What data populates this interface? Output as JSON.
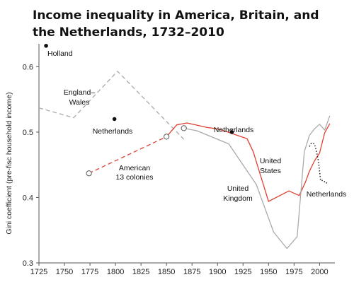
{
  "chart_data": {
    "type": "line",
    "title": "Income inequality in America, Britain, and the Netherlands, 1732–2010",
    "ylabel": "Gini coefficient (pre-fisc household income)",
    "xlabel": "",
    "xlim": [
      1725,
      2015
    ],
    "ylim": [
      0.3,
      0.635
    ],
    "xticks": [
      1725,
      1750,
      1775,
      1800,
      1825,
      1850,
      1875,
      1900,
      1925,
      1950,
      1975,
      2000
    ],
    "xtick_labels": [
      "1725",
      "1750",
      "1775",
      "1800",
      "1825",
      "1850",
      "1875",
      "1900",
      "1925",
      "1950",
      "1975",
      "2000"
    ],
    "yticks": [
      0.3,
      0.4,
      0.5,
      0.6
    ],
    "ytick_labels": [
      "0.3",
      "0.4",
      "0.5",
      "0.6"
    ],
    "grid": false,
    "legend": "none (series labelled directly on the chart)",
    "series": [
      {
        "name": "England–Wales",
        "color": "#aaaaaa",
        "style": "dashed",
        "x": [
          1725,
          1759,
          1802,
          1867
        ],
        "y": [
          0.537,
          0.522,
          0.593,
          0.489
        ]
      },
      {
        "name": "American 13 colonies",
        "color": "#e04030",
        "style": "dashed",
        "x": [
          1774,
          1850
        ],
        "y": [
          0.437,
          0.493
        ]
      },
      {
        "name": "United States",
        "color": "#e04030",
        "style": "solid",
        "x": [
          1850,
          1860,
          1870,
          1890,
          1900,
          1910,
          1929,
          1935,
          1950,
          1960,
          1970,
          1980,
          1986,
          1990,
          1995,
          2000,
          2005,
          2010
        ],
        "y": [
          0.493,
          0.511,
          0.514,
          0.507,
          0.505,
          0.5,
          0.49,
          0.47,
          0.394,
          0.402,
          0.41,
          0.403,
          0.423,
          0.44,
          0.456,
          0.468,
          0.499,
          0.513
        ]
      },
      {
        "name": "United Kingdom",
        "color": "#aaaaaa",
        "style": "solid",
        "x": [
          1867,
          1880,
          1911,
          1938,
          1955,
          1968,
          1978,
          1985,
          1990,
          1995,
          2000,
          2005,
          2010
        ],
        "y": [
          0.506,
          0.502,
          0.482,
          0.42,
          0.347,
          0.322,
          0.34,
          0.47,
          0.495,
          0.505,
          0.512,
          0.503,
          0.525
        ]
      },
      {
        "name": "Netherlands",
        "color": "#222222",
        "style": "dotted",
        "x": [
          1990,
          1992,
          1995,
          1997,
          1999,
          2001,
          2004,
          2006,
          2009
        ],
        "y": [
          0.478,
          0.483,
          0.482,
          0.47,
          0.455,
          0.426,
          0.426,
          0.422,
          0.423
        ]
      }
    ],
    "points": [
      {
        "name": "Holland",
        "x": 1732,
        "y": 0.632,
        "style": "filled"
      },
      {
        "name": "Netherlands",
        "x": 1799,
        "y": 0.52,
        "style": "filled"
      },
      {
        "name": "Netherlands",
        "x": 1914,
        "y": 0.5,
        "style": "filled"
      },
      {
        "name": "American 13 colonies",
        "x": 1774,
        "y": 0.437,
        "style": "open"
      },
      {
        "name": "United States",
        "x": 1850,
        "y": 0.493,
        "style": "open"
      },
      {
        "name": "United Kingdom",
        "x": 1867,
        "y": 0.506,
        "style": "open"
      }
    ],
    "annotations": [
      {
        "text": "Holland"
      },
      {
        "text": "England–"
      },
      {
        "text": "Wales"
      },
      {
        "text": "Netherlands"
      },
      {
        "text": "American"
      },
      {
        "text": "13 colonies"
      },
      {
        "text": "Netherlands"
      },
      {
        "text": "United"
      },
      {
        "text": "States"
      },
      {
        "text": "United"
      },
      {
        "text": "Kingdom"
      },
      {
        "text": "Netherlands"
      }
    ]
  }
}
